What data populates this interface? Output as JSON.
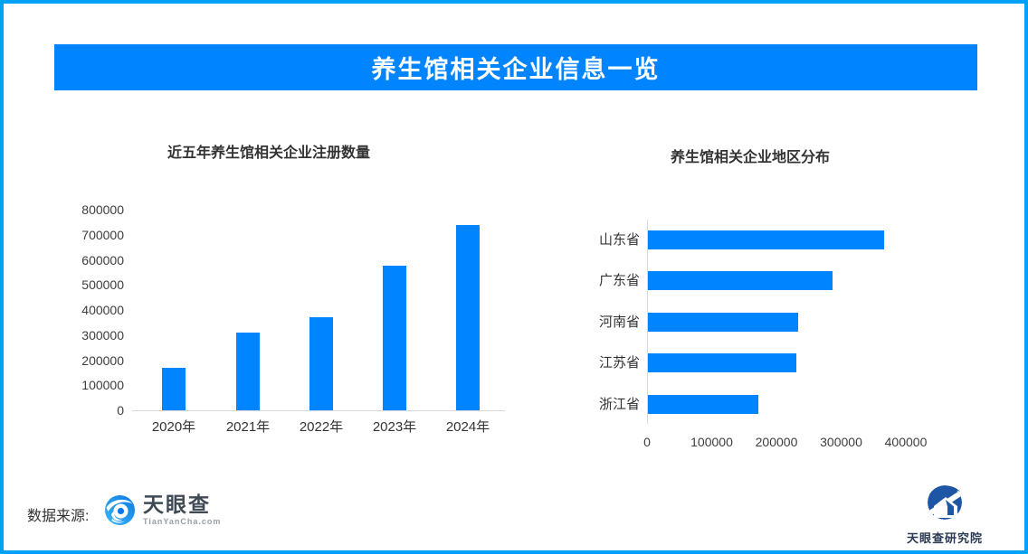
{
  "banner": {
    "title": "养生馆相关企业信息一览",
    "background_color": "#0184ff",
    "border_color": "#02a1f8",
    "text_color": "#ffffff"
  },
  "chart_data": [
    {
      "type": "bar",
      "orientation": "vertical",
      "title": "近五年养生馆相关企业注册数量",
      "categories": [
        "2020年",
        "2021年",
        "2022年",
        "2023年",
        "2024年"
      ],
      "values": [
        170000,
        310000,
        370000,
        575000,
        740000
      ],
      "ylabel": "",
      "xlabel": "",
      "ylim": [
        0,
        800000
      ],
      "ytick_step": 100000,
      "grid": false,
      "bar_color": "#0184ff"
    },
    {
      "type": "bar",
      "orientation": "horizontal",
      "title": "养生馆相关企业地区分布",
      "categories": [
        "山东省",
        "广东省",
        "河南省",
        "江苏省",
        "浙江省"
      ],
      "values": [
        365000,
        285000,
        232000,
        230000,
        170000
      ],
      "ylabel": "",
      "xlabel": "",
      "xlim": [
        0,
        400000
      ],
      "xtick_step": 100000,
      "grid": false,
      "bar_color": "#0184ff"
    }
  ],
  "footer": {
    "source_label": "数据来源:",
    "logo_name": "天眼查",
    "logo_domain": "TianYanCha.com",
    "institute_name": "天眼查研究院"
  }
}
